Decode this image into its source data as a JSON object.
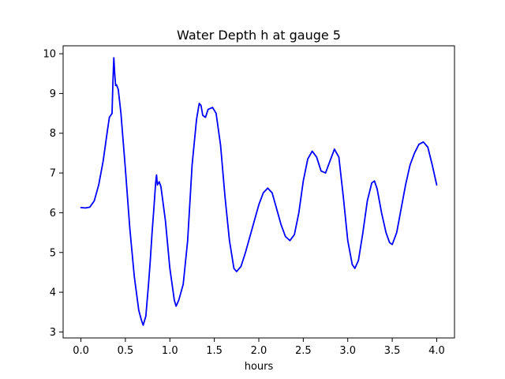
{
  "chart_data": {
    "type": "line",
    "title": "Water Depth h at gauge 5",
    "xlabel": "hours",
    "ylabel": "",
    "xlim": [
      -0.2,
      4.2
    ],
    "ylim": [
      2.85,
      10.2
    ],
    "grid": false,
    "x_ticks": [
      0.0,
      0.5,
      1.0,
      1.5,
      2.0,
      2.5,
      3.0,
      3.5,
      4.0
    ],
    "x_tick_labels": [
      "0.0",
      "0.5",
      "1.0",
      "1.5",
      "2.0",
      "2.5",
      "3.0",
      "3.5",
      "4.0"
    ],
    "y_ticks": [
      3,
      4,
      5,
      6,
      7,
      8,
      9,
      10
    ],
    "y_tick_labels": [
      "3",
      "4",
      "5",
      "6",
      "7",
      "8",
      "9",
      "10"
    ],
    "series": [
      {
        "color": "#0000ff",
        "points": [
          [
            0.0,
            6.13
          ],
          [
            0.05,
            6.12
          ],
          [
            0.1,
            6.14
          ],
          [
            0.15,
            6.3
          ],
          [
            0.2,
            6.7
          ],
          [
            0.25,
            7.3
          ],
          [
            0.3,
            8.1
          ],
          [
            0.32,
            8.4
          ],
          [
            0.35,
            8.5
          ],
          [
            0.36,
            9.3
          ],
          [
            0.37,
            9.9
          ],
          [
            0.38,
            9.5
          ],
          [
            0.39,
            9.2
          ],
          [
            0.4,
            9.22
          ],
          [
            0.42,
            9.1
          ],
          [
            0.45,
            8.5
          ],
          [
            0.5,
            7.1
          ],
          [
            0.55,
            5.6
          ],
          [
            0.6,
            4.4
          ],
          [
            0.65,
            3.55
          ],
          [
            0.68,
            3.3
          ],
          [
            0.7,
            3.17
          ],
          [
            0.73,
            3.4
          ],
          [
            0.76,
            4.2
          ],
          [
            0.78,
            4.8
          ],
          [
            0.8,
            5.5
          ],
          [
            0.82,
            6.1
          ],
          [
            0.84,
            6.75
          ],
          [
            0.85,
            6.95
          ],
          [
            0.86,
            6.7
          ],
          [
            0.88,
            6.78
          ],
          [
            0.9,
            6.65
          ],
          [
            0.95,
            5.8
          ],
          [
            1.0,
            4.6
          ],
          [
            1.05,
            3.8
          ],
          [
            1.07,
            3.65
          ],
          [
            1.1,
            3.8
          ],
          [
            1.15,
            4.2
          ],
          [
            1.2,
            5.3
          ],
          [
            1.25,
            7.2
          ],
          [
            1.3,
            8.35
          ],
          [
            1.33,
            8.75
          ],
          [
            1.35,
            8.7
          ],
          [
            1.37,
            8.45
          ],
          [
            1.4,
            8.4
          ],
          [
            1.43,
            8.6
          ],
          [
            1.48,
            8.65
          ],
          [
            1.52,
            8.5
          ],
          [
            1.57,
            7.7
          ],
          [
            1.62,
            6.4
          ],
          [
            1.67,
            5.3
          ],
          [
            1.72,
            4.6
          ],
          [
            1.75,
            4.52
          ],
          [
            1.8,
            4.65
          ],
          [
            1.85,
            5.0
          ],
          [
            1.9,
            5.4
          ],
          [
            1.95,
            5.8
          ],
          [
            2.0,
            6.2
          ],
          [
            2.05,
            6.5
          ],
          [
            2.1,
            6.62
          ],
          [
            2.15,
            6.5
          ],
          [
            2.2,
            6.1
          ],
          [
            2.25,
            5.7
          ],
          [
            2.3,
            5.4
          ],
          [
            2.35,
            5.3
          ],
          [
            2.4,
            5.45
          ],
          [
            2.45,
            6.0
          ],
          [
            2.5,
            6.8
          ],
          [
            2.55,
            7.35
          ],
          [
            2.6,
            7.55
          ],
          [
            2.65,
            7.4
          ],
          [
            2.7,
            7.05
          ],
          [
            2.75,
            7.0
          ],
          [
            2.8,
            7.3
          ],
          [
            2.85,
            7.6
          ],
          [
            2.9,
            7.4
          ],
          [
            2.95,
            6.4
          ],
          [
            3.0,
            5.3
          ],
          [
            3.05,
            4.7
          ],
          [
            3.08,
            4.6
          ],
          [
            3.12,
            4.8
          ],
          [
            3.17,
            5.5
          ],
          [
            3.22,
            6.3
          ],
          [
            3.27,
            6.75
          ],
          [
            3.3,
            6.8
          ],
          [
            3.33,
            6.6
          ],
          [
            3.38,
            6.0
          ],
          [
            3.43,
            5.5
          ],
          [
            3.47,
            5.25
          ],
          [
            3.5,
            5.2
          ],
          [
            3.55,
            5.5
          ],
          [
            3.6,
            6.1
          ],
          [
            3.65,
            6.7
          ],
          [
            3.7,
            7.2
          ],
          [
            3.75,
            7.5
          ],
          [
            3.8,
            7.72
          ],
          [
            3.85,
            7.78
          ],
          [
            3.9,
            7.65
          ],
          [
            3.95,
            7.2
          ],
          [
            4.0,
            6.7
          ]
        ]
      }
    ]
  }
}
